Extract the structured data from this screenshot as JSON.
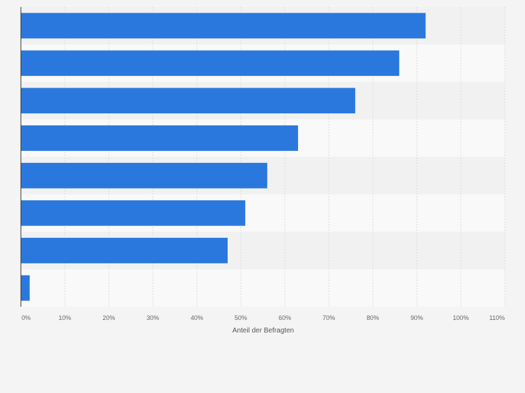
{
  "chart_data": {
    "type": "bar",
    "orientation": "horizontal",
    "categories": [
      "",
      "",
      "",
      "",
      "",
      "",
      "",
      ""
    ],
    "values": [
      92,
      86,
      76,
      63,
      56,
      51,
      47,
      2
    ],
    "unit": "%",
    "xlabel": "Anteil der Befragten",
    "xlim": [
      0,
      110
    ],
    "x_ticks": [
      0,
      10,
      20,
      30,
      40,
      50,
      60,
      70,
      80,
      90,
      100,
      110
    ],
    "x_tick_labels": [
      "0%",
      "10%",
      "20%",
      "30%",
      "40%",
      "50%",
      "60%",
      "70%",
      "80%",
      "90%",
      "100%",
      "110%"
    ],
    "grid": true,
    "bar_color": "#2a78de",
    "background_color": "#f4f4f4",
    "band_colors": [
      "#f1f1f1",
      "#f9f9f9"
    ]
  }
}
